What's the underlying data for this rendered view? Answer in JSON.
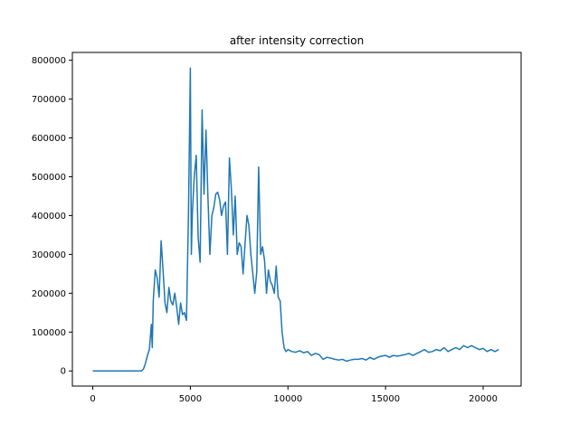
{
  "chart_data": {
    "type": "line",
    "title": "after intensity correction",
    "xlabel": "",
    "ylabel": "",
    "xlim": [
      -1045,
      21945
    ],
    "ylim": [
      -39000,
      820000
    ],
    "grid": false,
    "legend": null,
    "x_ticks": [
      0,
      5000,
      10000,
      15000,
      20000
    ],
    "x_tick_labels": [
      "0",
      "5000",
      "10000",
      "15000",
      "20000"
    ],
    "y_ticks": [
      0,
      100000,
      200000,
      300000,
      400000,
      500000,
      600000,
      700000,
      800000
    ],
    "y_tick_labels": [
      "0",
      "100000",
      "200000",
      "300000",
      "400000",
      "500000",
      "600000",
      "700000",
      "800000"
    ],
    "line_color": "#1f77b4",
    "series": [
      {
        "x": [
          0,
          500,
          1000,
          1500,
          2000,
          2500,
          2600,
          2700,
          2800,
          2900,
          3000,
          3050,
          3100,
          3200,
          3300,
          3400,
          3500,
          3600,
          3700,
          3800,
          3900,
          4000,
          4100,
          4200,
          4300,
          4400,
          4500,
          4600,
          4700,
          4800,
          4900,
          5000,
          5050,
          5100,
          5200,
          5300,
          5400,
          5500,
          5600,
          5700,
          5800,
          5900,
          6000,
          6100,
          6200,
          6300,
          6400,
          6500,
          6600,
          6700,
          6800,
          6900,
          7000,
          7100,
          7200,
          7300,
          7400,
          7500,
          7600,
          7700,
          7800,
          7900,
          8000,
          8100,
          8200,
          8300,
          8400,
          8500,
          8600,
          8700,
          8800,
          8900,
          9000,
          9100,
          9200,
          9300,
          9400,
          9500,
          9600,
          9700,
          9800,
          9900,
          10000,
          10200,
          10400,
          10600,
          10800,
          11000,
          11200,
          11400,
          11600,
          11800,
          12000,
          12200,
          12400,
          12600,
          12800,
          13000,
          13200,
          13400,
          13600,
          13800,
          14000,
          14200,
          14400,
          14600,
          14800,
          15000,
          15200,
          15400,
          15600,
          15800,
          16000,
          16200,
          16400,
          16600,
          16800,
          17000,
          17200,
          17400,
          17600,
          17800,
          18000,
          18200,
          18400,
          18600,
          18800,
          19000,
          19200,
          19400,
          19600,
          19800,
          20000,
          20200,
          20400,
          20600,
          20800
        ],
        "y": [
          0,
          0,
          0,
          0,
          0,
          0,
          5000,
          20000,
          40000,
          55000,
          120000,
          60000,
          180000,
          260000,
          240000,
          190000,
          335000,
          260000,
          175000,
          150000,
          215000,
          180000,
          170000,
          200000,
          165000,
          120000,
          175000,
          145000,
          150000,
          130000,
          400000,
          780000,
          300000,
          405000,
          500000,
          555000,
          345000,
          280000,
          672000,
          455000,
          620000,
          450000,
          300000,
          400000,
          420000,
          455000,
          460000,
          440000,
          400000,
          425000,
          435000,
          300000,
          548000,
          470000,
          350000,
          450000,
          300000,
          330000,
          320000,
          250000,
          325000,
          400000,
          375000,
          300000,
          250000,
          200000,
          255000,
          525000,
          300000,
          320000,
          285000,
          200000,
          260000,
          230000,
          220000,
          200000,
          270000,
          190000,
          180000,
          100000,
          60000,
          50000,
          55000,
          50000,
          48000,
          52000,
          47000,
          50000,
          40000,
          45000,
          42000,
          30000,
          35000,
          33000,
          30000,
          28000,
          30000,
          25000,
          28000,
          30000,
          30000,
          32000,
          28000,
          35000,
          30000,
          35000,
          38000,
          40000,
          35000,
          40000,
          38000,
          40000,
          42000,
          45000,
          40000,
          45000,
          50000,
          55000,
          48000,
          50000,
          55000,
          52000,
          60000,
          50000,
          55000,
          60000,
          55000,
          65000,
          60000,
          65000,
          60000,
          55000,
          58000,
          50000,
          55000,
          50000,
          55000
        ]
      }
    ]
  }
}
